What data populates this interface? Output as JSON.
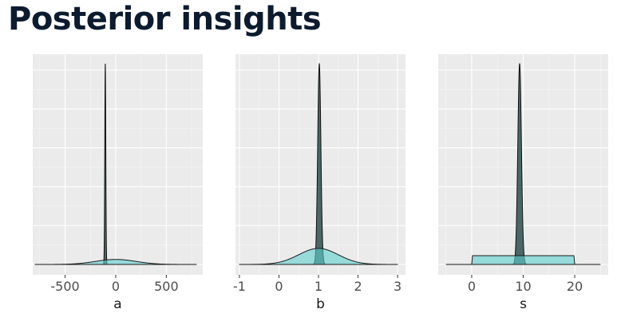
{
  "title": "Posterior insights",
  "chart_data": [
    {
      "type": "area",
      "xlabel": "a",
      "xticks": [
        -500,
        0,
        500
      ],
      "xlim": [
        -820,
        860
      ],
      "prior": {
        "kind": "normal",
        "mean": 0,
        "sd": 200,
        "range": [
          -800,
          800
        ],
        "color": "#5ecfcf"
      },
      "posterior": {
        "kind": "normal",
        "mean": -103,
        "sd": 5,
        "color": "#2f4f4f"
      }
    },
    {
      "type": "area",
      "xlabel": "b",
      "xticks": [
        -1,
        0,
        1,
        2,
        3
      ],
      "xlim": [
        -1.1,
        3.2
      ],
      "prior": {
        "kind": "normal",
        "mean": 1,
        "sd": 0.5,
        "range": [
          -1,
          3
        ],
        "color": "#5ecfcf"
      },
      "posterior": {
        "kind": "normal",
        "mean": 1.02,
        "sd": 0.04,
        "color": "#2f4f4f"
      }
    },
    {
      "type": "area",
      "xlabel": "s",
      "xticks": [
        0,
        10,
        20
      ],
      "xlim": [
        -6.5,
        26.5
      ],
      "prior": {
        "kind": "uniform",
        "min": 0,
        "max": 20,
        "range": [
          -5,
          25
        ],
        "color": "#5ecfcf"
      },
      "posterior": {
        "kind": "normal",
        "mean": 9.3,
        "sd": 0.35,
        "color": "#2f4f4f"
      }
    }
  ]
}
